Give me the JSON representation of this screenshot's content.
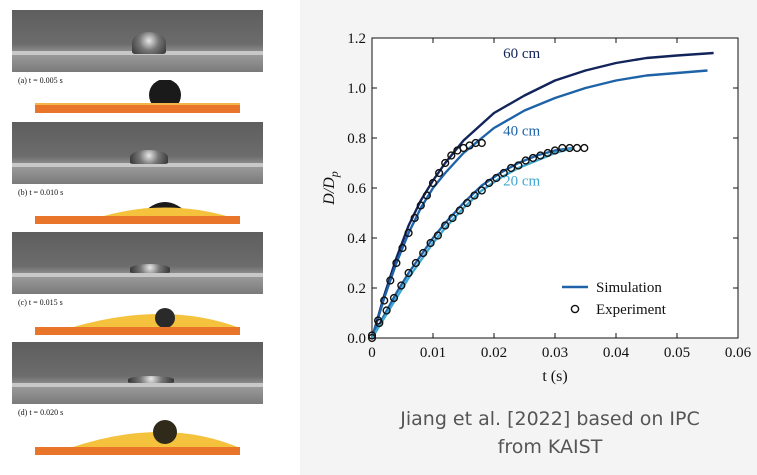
{
  "panels": [
    {
      "label": "(a) t = 0.005 s"
    },
    {
      "label": "(b) t = 0.010 s"
    },
    {
      "label": "(c) t = 0.015 s"
    },
    {
      "label": "(d) t = 0.020 s"
    }
  ],
  "caption": {
    "line1": "Jiang et al. [2022] based on IPC",
    "line2": "from KAIST"
  },
  "colors": {
    "c60": "#12245a",
    "c40": "#1e63a8",
    "c20": "#3ea8d0",
    "sim_legend": "#1e63a8"
  },
  "chart_data": {
    "type": "line",
    "xlabel": "t (s)",
    "ylabel": "D/D_p",
    "xlim": [
      0,
      0.06
    ],
    "ylim": [
      0,
      1.2
    ],
    "xticks": [
      "0",
      "0.01",
      "0.02",
      "0.03",
      "0.04",
      "0.05",
      "0.06"
    ],
    "yticks": [
      "0.0",
      "0.2",
      "0.4",
      "0.6",
      "0.8",
      "1.0",
      "1.2"
    ],
    "legend_position": "bottom-right",
    "legend": [
      {
        "label": "Simulation",
        "marker": "line"
      },
      {
        "label": "Experiment",
        "marker": "circle"
      }
    ],
    "series": [
      {
        "name": "60 cm",
        "kind": "simulation",
        "color": "#12245a",
        "x": [
          0,
          0.002,
          0.004,
          0.006,
          0.008,
          0.01,
          0.012,
          0.015,
          0.02,
          0.025,
          0.03,
          0.035,
          0.04,
          0.045,
          0.05,
          0.056
        ],
        "y": [
          0,
          0.17,
          0.32,
          0.45,
          0.55,
          0.63,
          0.7,
          0.79,
          0.9,
          0.97,
          1.03,
          1.07,
          1.1,
          1.12,
          1.13,
          1.14
        ]
      },
      {
        "name": "",
        "kind": "simulation",
        "color": "#1e63a8",
        "x": [
          0,
          0.002,
          0.004,
          0.006,
          0.008,
          0.01,
          0.012,
          0.015,
          0.02,
          0.025,
          0.03,
          0.035,
          0.04,
          0.045,
          0.05,
          0.055
        ],
        "y": [
          0,
          0.16,
          0.3,
          0.42,
          0.52,
          0.6,
          0.66,
          0.74,
          0.84,
          0.91,
          0.96,
          1.0,
          1.03,
          1.05,
          1.06,
          1.07
        ]
      },
      {
        "name": "40 cm",
        "kind": "simulation",
        "color": "#1e63a8",
        "x": [
          0,
          0.002,
          0.004,
          0.006,
          0.008,
          0.01,
          0.012,
          0.015,
          0.018,
          0.021,
          0.024,
          0.027,
          0.03,
          0.033
        ],
        "y": [
          0,
          0.09,
          0.18,
          0.26,
          0.33,
          0.4,
          0.46,
          0.54,
          0.61,
          0.66,
          0.7,
          0.73,
          0.75,
          0.76
        ]
      },
      {
        "name": "20 cm",
        "kind": "simulation",
        "color": "#3ea8d0",
        "x": [
          0,
          0.002,
          0.004,
          0.006,
          0.008,
          0.01,
          0.012,
          0.015,
          0.018,
          0.021,
          0.024,
          0.027,
          0.03,
          0.033
        ],
        "y": [
          0,
          0.08,
          0.16,
          0.24,
          0.31,
          0.38,
          0.44,
          0.52,
          0.59,
          0.64,
          0.68,
          0.71,
          0.74,
          0.76
        ]
      },
      {
        "name": "",
        "kind": "experiment",
        "x": [
          0,
          0.001,
          0.002,
          0.003,
          0.004,
          0.005,
          0.006,
          0.007,
          0.008,
          0.009,
          0.01,
          0.011,
          0.012,
          0.013,
          0.014,
          0.015,
          0.016,
          0.017,
          0.018
        ],
        "y": [
          0.01,
          0.07,
          0.15,
          0.23,
          0.3,
          0.36,
          0.42,
          0.48,
          0.53,
          0.57,
          0.62,
          0.66,
          0.7,
          0.73,
          0.75,
          0.76,
          0.77,
          0.78,
          0.78
        ]
      },
      {
        "name": "",
        "kind": "experiment",
        "x": [
          0,
          0.0012,
          0.0024,
          0.0036,
          0.0048,
          0.006,
          0.0072,
          0.0084,
          0.0096,
          0.0108,
          0.012,
          0.0132,
          0.0144,
          0.0156,
          0.0168,
          0.018,
          0.0192,
          0.0204,
          0.0216,
          0.0228,
          0.024,
          0.0252,
          0.0264,
          0.0276,
          0.0288,
          0.03,
          0.0312,
          0.0324,
          0.0336,
          0.0348
        ],
        "y": [
          0.0,
          0.06,
          0.11,
          0.16,
          0.21,
          0.26,
          0.3,
          0.34,
          0.38,
          0.41,
          0.45,
          0.48,
          0.51,
          0.54,
          0.57,
          0.59,
          0.62,
          0.64,
          0.66,
          0.68,
          0.69,
          0.71,
          0.72,
          0.73,
          0.74,
          0.75,
          0.76,
          0.76,
          0.76,
          0.76
        ]
      }
    ],
    "annotations": [
      {
        "text": "60 cm",
        "x": 0.0215,
        "y": 1.12,
        "color": "#12245a"
      },
      {
        "text": "40 cm",
        "x": 0.0215,
        "y": 0.81,
        "color": "#1e63a8"
      },
      {
        "text": "20 cm",
        "x": 0.0215,
        "y": 0.61,
        "color": "#3ea8d0"
      }
    ]
  }
}
